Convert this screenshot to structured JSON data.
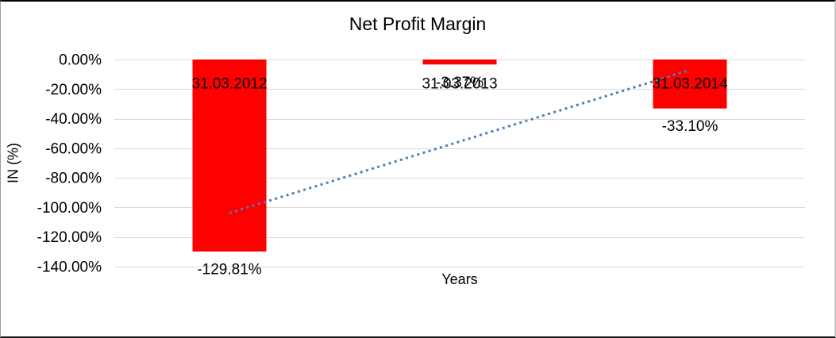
{
  "chart_data": {
    "type": "bar",
    "title": "Net Profit Margin",
    "xlabel": "Years",
    "ylabel": "IN (%)",
    "categories": [
      "31.03.2012",
      "31.03.2013",
      "31.03.2014"
    ],
    "values": [
      -129.81,
      -3.37,
      -33.1
    ],
    "data_labels": [
      "-129.81%",
      "-3.37%",
      "-33.10%"
    ],
    "y_ticks": [
      {
        "label": "0.00%",
        "value": 0
      },
      {
        "label": "-20.00%",
        "value": -20
      },
      {
        "label": "-40.00%",
        "value": -40
      },
      {
        "label": "-60.00%",
        "value": -60
      },
      {
        "label": "-80.00%",
        "value": -80
      },
      {
        "label": "-100.00%",
        "value": -100
      },
      {
        "label": "-120.00%",
        "value": -120
      },
      {
        "label": "-140.00%",
        "value": -140
      }
    ],
    "ylim": [
      -140,
      0
    ],
    "grid": true,
    "legend": "none",
    "trendline": {
      "type": "linear",
      "style": "dotted",
      "start_value": -103.8,
      "end_value": -7.1
    },
    "colors": {
      "bar": "#FF0000",
      "gridline": "#D9D9D9",
      "trendline": "#4A7EBB",
      "text": "#000000"
    }
  }
}
